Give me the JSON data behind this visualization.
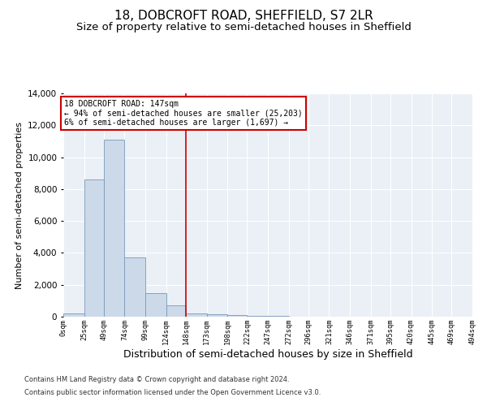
{
  "title": "18, DOBCROFT ROAD, SHEFFIELD, S7 2LR",
  "subtitle": "Size of property relative to semi-detached houses in Sheffield",
  "xlabel": "Distribution of semi-detached houses by size in Sheffield",
  "ylabel": "Number of semi-detached properties",
  "footnote1": "Contains HM Land Registry data © Crown copyright and database right 2024.",
  "footnote2": "Contains public sector information licensed under the Open Government Licence v3.0.",
  "annotation_title": "18 DOBCROFT ROAD: 147sqm",
  "annotation_line1": "← 94% of semi-detached houses are smaller (25,203)",
  "annotation_line2": "6% of semi-detached houses are larger (1,697) →",
  "property_size": 147,
  "bar_edges": [
    0,
    25,
    49,
    74,
    99,
    124,
    148,
    173,
    198,
    222,
    247,
    272,
    296,
    321,
    346,
    371,
    395,
    420,
    445,
    469,
    494
  ],
  "bar_heights": [
    200,
    8600,
    11100,
    3700,
    1500,
    700,
    200,
    150,
    100,
    50,
    30,
    20,
    15,
    10,
    8,
    5,
    5,
    3,
    3,
    2
  ],
  "bar_color": "#ccd9e8",
  "bar_edgecolor": "#7799bb",
  "vline_color": "#cc0000",
  "vline_x": 148,
  "annotation_box_edgecolor": "#cc0000",
  "annotation_box_facecolor": "#ffffff",
  "ylim": [
    0,
    14000
  ],
  "xlim": [
    0,
    494
  ],
  "background_color": "#eaf0f6",
  "grid_color": "#ffffff",
  "title_fontsize": 11,
  "subtitle_fontsize": 9.5,
  "xlabel_fontsize": 9,
  "ylabel_fontsize": 8,
  "footnote_fontsize": 6,
  "tick_labels": [
    "0sqm",
    "25sqm",
    "49sqm",
    "74sqm",
    "99sqm",
    "124sqm",
    "148sqm",
    "173sqm",
    "198sqm",
    "222sqm",
    "247sqm",
    "272sqm",
    "296sqm",
    "321sqm",
    "346sqm",
    "371sqm",
    "395sqm",
    "420sqm",
    "445sqm",
    "469sqm",
    "494sqm"
  ]
}
